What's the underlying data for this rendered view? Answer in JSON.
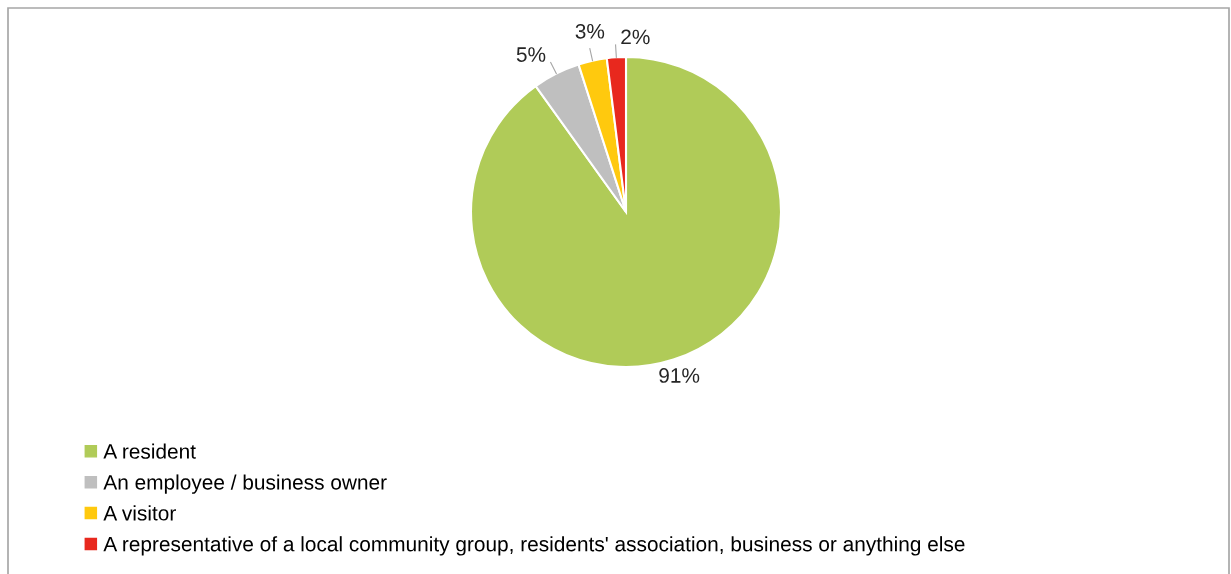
{
  "chart_data": {
    "type": "pie",
    "categories": [
      "A resident",
      "An employee / business owner",
      "A visitor",
      "A representative of a local community group, residents' association, business or anything else"
    ],
    "values": [
      91,
      5,
      3,
      2
    ],
    "colors": [
      "#b0cb58",
      "#bfbfbf",
      "#ffc90e",
      "#e8281e"
    ],
    "value_labels": [
      "91%",
      "5%",
      "3%",
      "2%"
    ],
    "legend": "bottom"
  }
}
